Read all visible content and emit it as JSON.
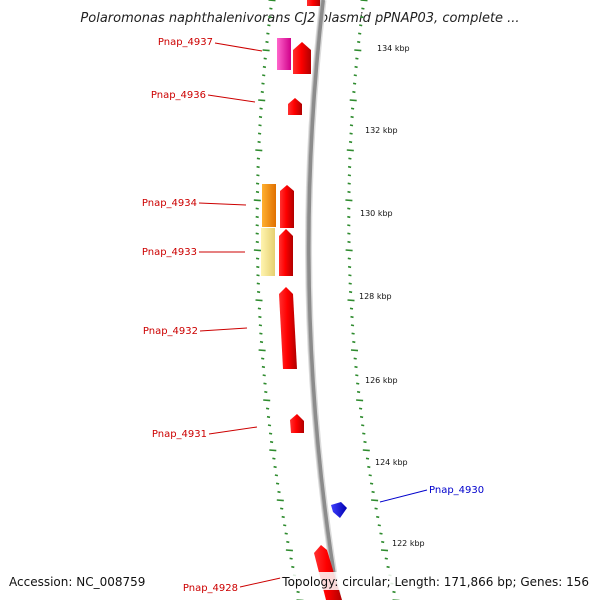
{
  "title": "Polaromonas naphthalenivorans CJ2 plasmid pPNAP03, complete ...",
  "footer": {
    "accession": "Accession: NC_008759",
    "summary": "Topology: circular; Length: 171,866 bp; Genes: 156"
  },
  "colors": {
    "backbone": "#8c8c8c",
    "tick": "#2e8b2e",
    "gene_red": "#ff0000",
    "label_red": "#cc0000",
    "label_blue": "#0000cc"
  },
  "scale_labels": [
    "134 kbp",
    "132 kbp",
    "130 kbp",
    "128 kbp",
    "126 kbp",
    "124 kbp",
    "122 kbp"
  ],
  "genes": [
    {
      "name": "Pnap_4937",
      "color": "red"
    },
    {
      "name": "Pnap_4936",
      "color": "red"
    },
    {
      "name": "Pnap_4934",
      "color": "red"
    },
    {
      "name": "Pnap_4933",
      "color": "red"
    },
    {
      "name": "Pnap_4932",
      "color": "red"
    },
    {
      "name": "Pnap_4931",
      "color": "red"
    },
    {
      "name": "Pnap_4930",
      "color": "blue"
    },
    {
      "name": "Pnap_4928",
      "color": "red"
    }
  ]
}
